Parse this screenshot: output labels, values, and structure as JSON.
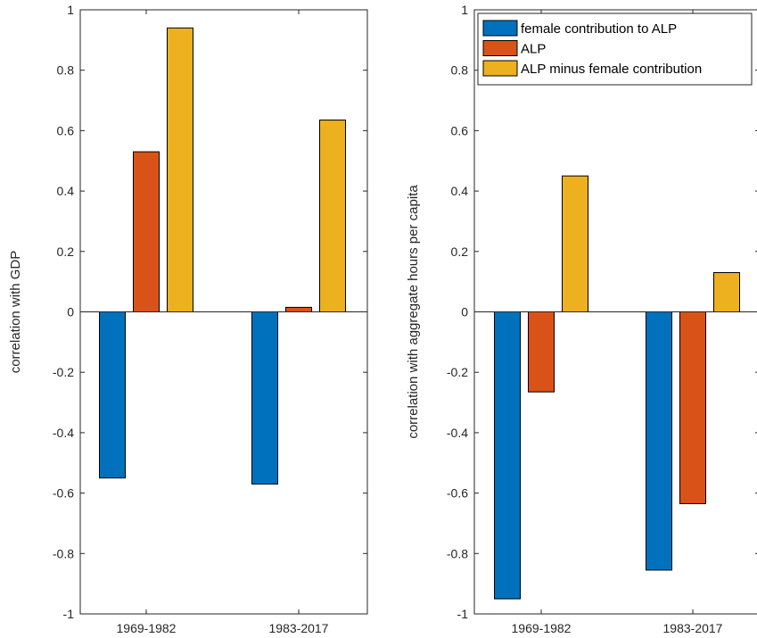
{
  "chart_data": [
    {
      "type": "bar",
      "categories": [
        "1969-1982",
        "1983-2017"
      ],
      "series": [
        {
          "values": [
            -0.55,
            -0.57
          ],
          "color": "#0072BD"
        },
        {
          "values": [
            0.53,
            0.015
          ],
          "color": "#D95319"
        },
        {
          "values": [
            0.94,
            0.635
          ],
          "color": "#EDB120"
        }
      ],
      "xlabel": "",
      "ylabel": "correlation with GDP",
      "ylim": [
        -1,
        1
      ],
      "yticks": [
        "-1",
        "-0.8",
        "-0.6",
        "-0.4",
        "-0.2",
        "0",
        "0.2",
        "0.4",
        "0.6",
        "0.8",
        "1"
      ],
      "grid": false,
      "legend": null
    },
    {
      "type": "bar",
      "categories": [
        "1969-1982",
        "1983-2017"
      ],
      "series": [
        {
          "name": "female contribution to ALP",
          "values": [
            -0.95,
            -0.855
          ],
          "color": "#0072BD"
        },
        {
          "name": "ALP",
          "values": [
            -0.265,
            -0.635
          ],
          "color": "#D95319"
        },
        {
          "name": "ALP minus female contribution",
          "values": [
            0.45,
            0.13
          ],
          "color": "#EDB120"
        }
      ],
      "xlabel": "",
      "ylabel": "correlation with aggregate hours per capita",
      "ylim": [
        -1,
        1
      ],
      "yticks": [
        "-1",
        "-0.8",
        "-0.6",
        "-0.4",
        "-0.2",
        "0",
        "0.2",
        "0.4",
        "0.6",
        "0.8",
        "1"
      ],
      "grid": false,
      "legend": "top"
    }
  ]
}
